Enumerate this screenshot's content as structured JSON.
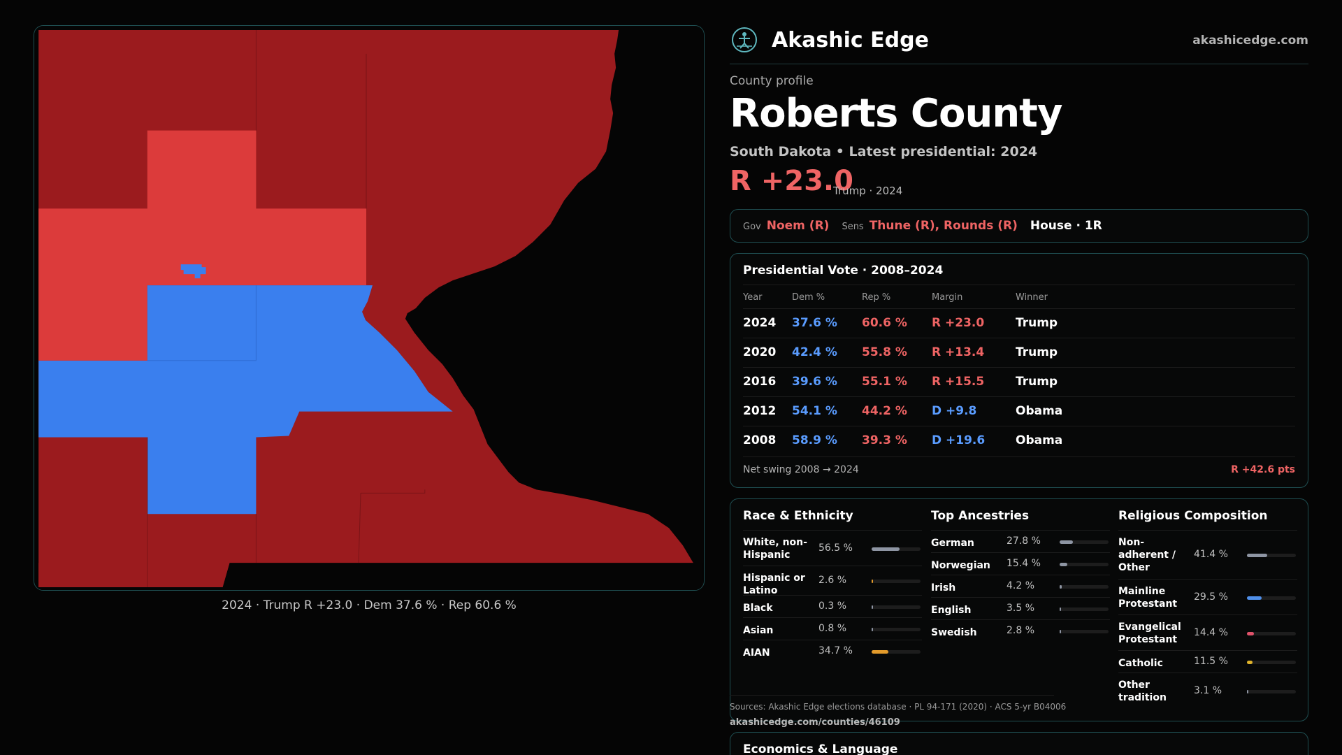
{
  "map": {
    "caption": "2024 · Trump R +23.0 · Dem 37.6 % · Rep 60.6 %",
    "colors": {
      "dark_red": "#9b1b1e",
      "light_red": "#dc3b3b",
      "blue": "#3a7fee",
      "water": "#050505"
    }
  },
  "brand": {
    "name": "Akashic Edge",
    "url": "akashicedge.com",
    "logo_icon": "figure-circle-icon"
  },
  "profile": {
    "kicker": "County profile",
    "title": "Roberts County",
    "subtitle": "South Dakota • Latest presidential: 2024",
    "margin": "R +23.0",
    "margin_note": "Trump · 2024"
  },
  "officials": {
    "gov_label": "Gov",
    "gov_value": "Noem (R)",
    "sens_label": "Sens",
    "sens_value": "Thune (R), Rounds (R)",
    "house": "House · 1R"
  },
  "presidential": {
    "title": "Presidential Vote · 2008–2024",
    "headers": {
      "year": "Year",
      "dem": "Dem %",
      "rep": "Rep %",
      "margin": "Margin",
      "winner": "Winner"
    },
    "rows": [
      {
        "year": "2024",
        "dem": "37.6 %",
        "rep": "60.6 %",
        "margin": "R +23.0",
        "party": "r",
        "winner": "Trump"
      },
      {
        "year": "2020",
        "dem": "42.4 %",
        "rep": "55.8 %",
        "margin": "R +13.4",
        "party": "r",
        "winner": "Trump"
      },
      {
        "year": "2016",
        "dem": "39.6 %",
        "rep": "55.1 %",
        "margin": "R +15.5",
        "party": "r",
        "winner": "Trump"
      },
      {
        "year": "2012",
        "dem": "54.1 %",
        "rep": "44.2 %",
        "margin": "D +9.8",
        "party": "d",
        "winner": "Obama"
      },
      {
        "year": "2008",
        "dem": "58.9 %",
        "rep": "39.3 %",
        "margin": "D +19.6",
        "party": "d",
        "winner": "Obama"
      }
    ],
    "swing_label": "Net swing 2008 → 2024",
    "swing_value": "R +42.6 pts"
  },
  "race": {
    "title": "Race & Ethnicity",
    "items": [
      {
        "label": "White, non-Hispanic",
        "value": "56.5 %",
        "pct": 56.5,
        "color": "#8e95a3"
      },
      {
        "label": "Hispanic or Latino",
        "value": "2.6 %",
        "pct": 2.6,
        "color": "#e39b2b"
      },
      {
        "label": "Black",
        "value": "0.3 %",
        "pct": 0.3,
        "color": "#8e95a3"
      },
      {
        "label": "Asian",
        "value": "0.8 %",
        "pct": 0.8,
        "color": "#8e95a3"
      },
      {
        "label": "AIAN",
        "value": "34.7 %",
        "pct": 34.7,
        "color": "#e39b2b"
      }
    ]
  },
  "ancestry": {
    "title": "Top Ancestries",
    "items": [
      {
        "label": "German",
        "value": "27.8 %",
        "pct": 27.8,
        "color": "#8e95a3"
      },
      {
        "label": "Norwegian",
        "value": "15.4 %",
        "pct": 15.4,
        "color": "#8e95a3"
      },
      {
        "label": "Irish",
        "value": "4.2 %",
        "pct": 4.2,
        "color": "#8e95a3"
      },
      {
        "label": "English",
        "value": "3.5 %",
        "pct": 3.5,
        "color": "#8e95a3"
      },
      {
        "label": "Swedish",
        "value": "2.8 %",
        "pct": 2.8,
        "color": "#8e95a3"
      }
    ]
  },
  "religion": {
    "title": "Religious Composition",
    "items": [
      {
        "label": "Non-adherent / Other",
        "value": "41.4 %",
        "pct": 41.4,
        "color": "#8e95a3"
      },
      {
        "label": "Mainline Protestant",
        "value": "29.5 %",
        "pct": 29.5,
        "color": "#4f8fea"
      },
      {
        "label": "Evangelical Protestant",
        "value": "14.4 %",
        "pct": 14.4,
        "color": "#e0526a"
      },
      {
        "label": "Catholic",
        "value": "11.5 %",
        "pct": 11.5,
        "color": "#e0b32b"
      },
      {
        "label": "Other tradition",
        "value": "3.1 %",
        "pct": 3.1,
        "color": "#8e95a3"
      }
    ]
  },
  "sources": {
    "text": "Sources: Akashic Edge elections database · PL 94-171 (2020) · ACS 5-yr B04006",
    "url": "akashicedge.com/counties/46109"
  },
  "econ": {
    "title": "Economics & Language"
  }
}
